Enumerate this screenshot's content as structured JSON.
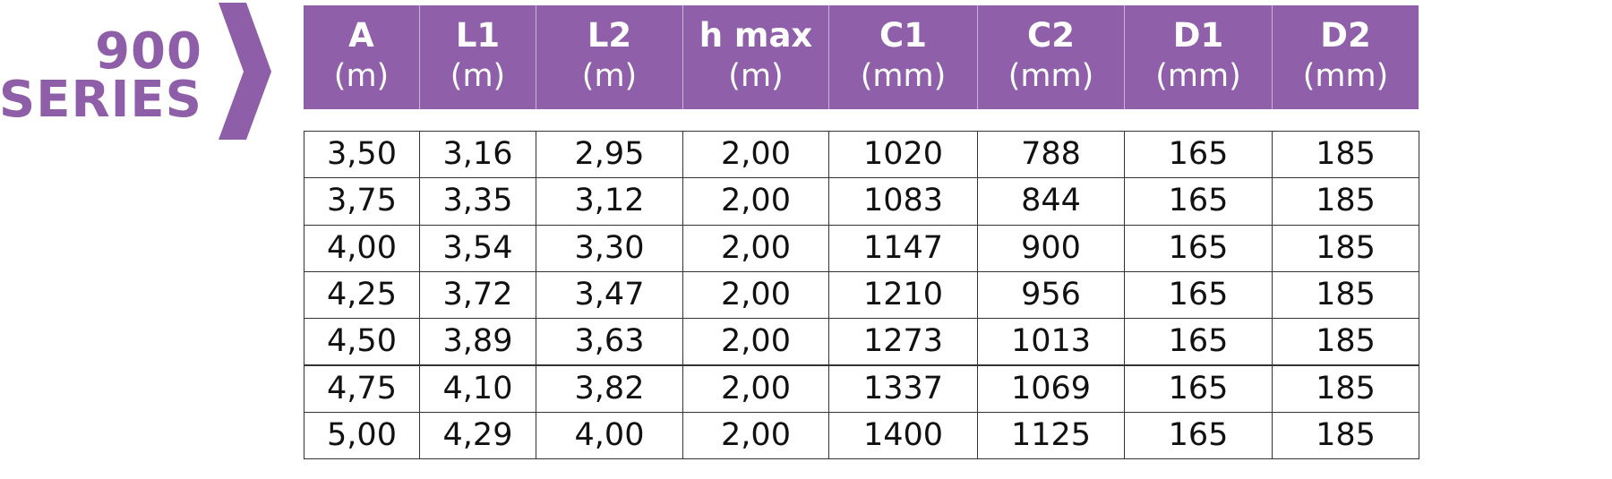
{
  "title": {
    "line1": "900",
    "line2": "SERIES"
  },
  "header": [
    {
      "label": "A",
      "unit": "(m)"
    },
    {
      "label": "L1",
      "unit": "(m)"
    },
    {
      "label": "L2",
      "unit": "(m)"
    },
    {
      "label": "h max",
      "unit": "(m)"
    },
    {
      "label": "C1",
      "unit": "(mm)"
    },
    {
      "label": "C2",
      "unit": "(mm)"
    },
    {
      "label": "D1",
      "unit": "(mm)"
    },
    {
      "label": "D2",
      "unit": "(mm)"
    }
  ],
  "table": {
    "rows": [
      [
        "3,50",
        "3,16",
        "2,95",
        "2,00",
        "1020",
        "788",
        "165",
        "185"
      ],
      [
        "3,75",
        "3,35",
        "3,12",
        "2,00",
        "1083",
        "844",
        "165",
        "185"
      ],
      [
        "4,00",
        "3,54",
        "3,30",
        "2,00",
        "1147",
        "900",
        "165",
        "185"
      ],
      [
        "4,25",
        "3,72",
        "3,47",
        "2,00",
        "1210",
        "956",
        "165",
        "185"
      ],
      [
        "4,50",
        "3,89",
        "3,63",
        "2,00",
        "1273",
        "1013",
        "165",
        "185"
      ],
      [
        "4,75",
        "4,10",
        "3,82",
        "2,00",
        "1337",
        "1069",
        "165",
        "185"
      ],
      [
        "5,00",
        "4,29",
        "4,00",
        "2,00",
        "1400",
        "1125",
        "165",
        "185"
      ]
    ]
  }
}
